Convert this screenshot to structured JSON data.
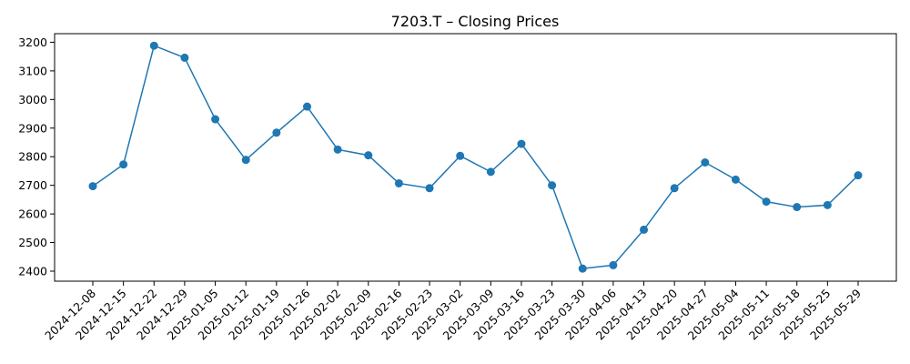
{
  "chart_data": {
    "type": "line",
    "title": "7203.T – Closing Prices",
    "xlabel": "",
    "ylabel": "",
    "x": [
      "2024-12-08",
      "2024-12-15",
      "2024-12-22",
      "2024-12-29",
      "2025-01-05",
      "2025-01-12",
      "2025-01-19",
      "2025-01-26",
      "2025-02-02",
      "2025-02-09",
      "2025-02-16",
      "2025-02-23",
      "2025-03-02",
      "2025-03-09",
      "2025-03-16",
      "2025-03-23",
      "2025-03-30",
      "2025-04-06",
      "2025-04-13",
      "2025-04-20",
      "2025-04-27",
      "2025-05-04",
      "2025-05-11",
      "2025-05-18",
      "2025-05-25",
      "2025-05-29"
    ],
    "series": [
      {
        "values": [
          2697,
          2773,
          3188,
          3146,
          2931,
          2789,
          2884,
          2975,
          2825,
          2805,
          2707,
          2690,
          2803,
          2747,
          2845,
          2700,
          2409,
          2421,
          2545,
          2690,
          2780,
          2720,
          2643,
          2624,
          2631,
          2735
        ],
        "color": "#1f77b4"
      }
    ],
    "ylim": [
      2365,
      3230
    ],
    "yticks": [
      2400,
      2500,
      2600,
      2700,
      2800,
      2900,
      3000,
      3100,
      3200
    ],
    "grid": false,
    "legend": "none"
  }
}
